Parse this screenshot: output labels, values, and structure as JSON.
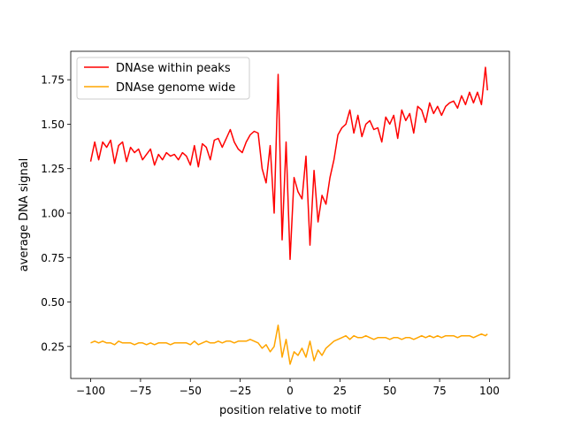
{
  "chart_data": {
    "type": "line",
    "title": "",
    "xlabel": "position relative to motif",
    "ylabel": "average DNA signal",
    "xlim": [
      -110,
      110
    ],
    "ylim": [
      0.07,
      1.91
    ],
    "xticks": [
      -100,
      -75,
      -50,
      -25,
      0,
      25,
      50,
      75,
      100
    ],
    "xtick_labels": [
      "−100",
      "−75",
      "−50",
      "−25",
      "0",
      "25",
      "50",
      "75",
      "100"
    ],
    "yticks": [
      0.25,
      0.5,
      0.75,
      1.0,
      1.25,
      1.5,
      1.75
    ],
    "ytick_labels": [
      "0.25",
      "0.50",
      "0.75",
      "1.00",
      "1.25",
      "1.50",
      "1.75"
    ],
    "grid": false,
    "legend_position": "top-left",
    "x": [
      -100,
      -98,
      -96,
      -94,
      -92,
      -90,
      -88,
      -86,
      -84,
      -82,
      -80,
      -78,
      -76,
      -74,
      -72,
      -70,
      -68,
      -66,
      -64,
      -62,
      -60,
      -58,
      -56,
      -54,
      -52,
      -50,
      -48,
      -46,
      -44,
      -42,
      -40,
      -38,
      -36,
      -34,
      -32,
      -30,
      -28,
      -26,
      -24,
      -22,
      -20,
      -18,
      -16,
      -14,
      -12,
      -10,
      -8,
      -6,
      -4,
      -2,
      0,
      2,
      4,
      6,
      8,
      10,
      12,
      14,
      16,
      18,
      20,
      22,
      24,
      26,
      28,
      30,
      32,
      34,
      36,
      38,
      40,
      42,
      44,
      46,
      48,
      50,
      52,
      54,
      56,
      58,
      60,
      62,
      64,
      66,
      68,
      70,
      72,
      74,
      76,
      78,
      80,
      82,
      84,
      86,
      88,
      90,
      92,
      94,
      96,
      98,
      99
    ],
    "series": [
      {
        "name": "DNAse within peaks",
        "color": "#ff0000",
        "values": [
          1.29,
          1.4,
          1.3,
          1.4,
          1.37,
          1.41,
          1.28,
          1.38,
          1.4,
          1.29,
          1.37,
          1.34,
          1.36,
          1.3,
          1.33,
          1.36,
          1.27,
          1.33,
          1.3,
          1.34,
          1.32,
          1.33,
          1.3,
          1.34,
          1.32,
          1.27,
          1.38,
          1.26,
          1.39,
          1.37,
          1.3,
          1.41,
          1.42,
          1.37,
          1.42,
          1.47,
          1.4,
          1.36,
          1.34,
          1.4,
          1.44,
          1.46,
          1.45,
          1.25,
          1.17,
          1.38,
          1.0,
          1.78,
          0.85,
          1.4,
          0.74,
          1.2,
          1.12,
          1.08,
          1.32,
          0.82,
          1.24,
          0.95,
          1.1,
          1.05,
          1.2,
          1.3,
          1.44,
          1.48,
          1.5,
          1.58,
          1.45,
          1.55,
          1.43,
          1.5,
          1.52,
          1.47,
          1.48,
          1.4,
          1.54,
          1.5,
          1.55,
          1.42,
          1.58,
          1.52,
          1.56,
          1.45,
          1.6,
          1.58,
          1.51,
          1.62,
          1.56,
          1.6,
          1.55,
          1.6,
          1.62,
          1.63,
          1.59,
          1.66,
          1.61,
          1.68,
          1.62,
          1.68,
          1.61,
          1.82,
          1.69
        ]
      },
      {
        "name": "DNAse genome wide",
        "color": "#ffa500",
        "values": [
          0.27,
          0.28,
          0.27,
          0.28,
          0.27,
          0.27,
          0.26,
          0.28,
          0.27,
          0.27,
          0.27,
          0.26,
          0.27,
          0.27,
          0.26,
          0.27,
          0.26,
          0.27,
          0.27,
          0.27,
          0.26,
          0.27,
          0.27,
          0.27,
          0.27,
          0.26,
          0.28,
          0.26,
          0.27,
          0.28,
          0.27,
          0.27,
          0.28,
          0.27,
          0.28,
          0.28,
          0.27,
          0.28,
          0.28,
          0.28,
          0.29,
          0.28,
          0.27,
          0.24,
          0.26,
          0.22,
          0.25,
          0.37,
          0.19,
          0.29,
          0.15,
          0.22,
          0.2,
          0.24,
          0.19,
          0.28,
          0.17,
          0.23,
          0.2,
          0.24,
          0.26,
          0.28,
          0.29,
          0.3,
          0.31,
          0.29,
          0.31,
          0.3,
          0.3,
          0.31,
          0.3,
          0.29,
          0.3,
          0.3,
          0.3,
          0.29,
          0.3,
          0.3,
          0.29,
          0.3,
          0.3,
          0.29,
          0.3,
          0.31,
          0.3,
          0.31,
          0.3,
          0.31,
          0.3,
          0.31,
          0.31,
          0.31,
          0.3,
          0.31,
          0.31,
          0.31,
          0.3,
          0.31,
          0.32,
          0.31,
          0.32
        ]
      }
    ]
  }
}
